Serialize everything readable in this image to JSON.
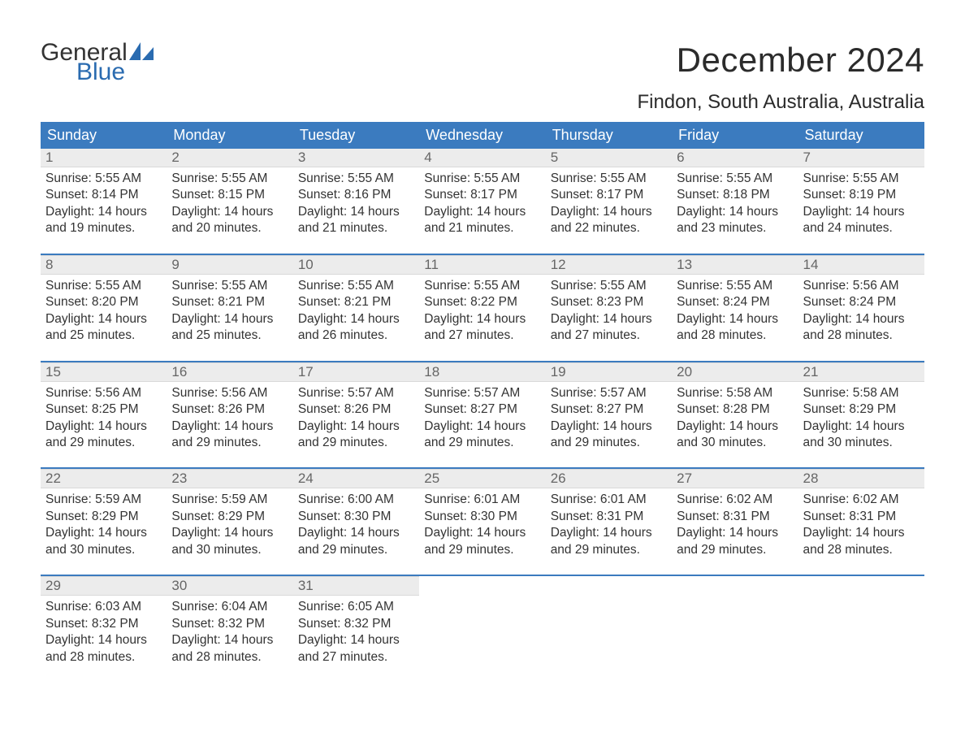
{
  "brand": {
    "word1": "General",
    "word2": "Blue",
    "word1_color": "#333333",
    "word2_color": "#2a6bb0"
  },
  "title": "December 2024",
  "location": "Findon, South Australia, Australia",
  "header_bg": "#3b7bbf",
  "header_fg": "#ffffff",
  "daynum_bg": "#ececec",
  "daynum_fg": "#666666",
  "text_color": "#333333",
  "rule_color": "#3b7bbf",
  "days_of_week": [
    "Sunday",
    "Monday",
    "Tuesday",
    "Wednesday",
    "Thursday",
    "Friday",
    "Saturday"
  ],
  "weeks": [
    [
      {
        "n": "1",
        "sunrise": "Sunrise: 5:55 AM",
        "sunset": "Sunset: 8:14 PM",
        "d1": "Daylight: 14 hours",
        "d2": "and 19 minutes."
      },
      {
        "n": "2",
        "sunrise": "Sunrise: 5:55 AM",
        "sunset": "Sunset: 8:15 PM",
        "d1": "Daylight: 14 hours",
        "d2": "and 20 minutes."
      },
      {
        "n": "3",
        "sunrise": "Sunrise: 5:55 AM",
        "sunset": "Sunset: 8:16 PM",
        "d1": "Daylight: 14 hours",
        "d2": "and 21 minutes."
      },
      {
        "n": "4",
        "sunrise": "Sunrise: 5:55 AM",
        "sunset": "Sunset: 8:17 PM",
        "d1": "Daylight: 14 hours",
        "d2": "and 21 minutes."
      },
      {
        "n": "5",
        "sunrise": "Sunrise: 5:55 AM",
        "sunset": "Sunset: 8:17 PM",
        "d1": "Daylight: 14 hours",
        "d2": "and 22 minutes."
      },
      {
        "n": "6",
        "sunrise": "Sunrise: 5:55 AM",
        "sunset": "Sunset: 8:18 PM",
        "d1": "Daylight: 14 hours",
        "d2": "and 23 minutes."
      },
      {
        "n": "7",
        "sunrise": "Sunrise: 5:55 AM",
        "sunset": "Sunset: 8:19 PM",
        "d1": "Daylight: 14 hours",
        "d2": "and 24 minutes."
      }
    ],
    [
      {
        "n": "8",
        "sunrise": "Sunrise: 5:55 AM",
        "sunset": "Sunset: 8:20 PM",
        "d1": "Daylight: 14 hours",
        "d2": "and 25 minutes."
      },
      {
        "n": "9",
        "sunrise": "Sunrise: 5:55 AM",
        "sunset": "Sunset: 8:21 PM",
        "d1": "Daylight: 14 hours",
        "d2": "and 25 minutes."
      },
      {
        "n": "10",
        "sunrise": "Sunrise: 5:55 AM",
        "sunset": "Sunset: 8:21 PM",
        "d1": "Daylight: 14 hours",
        "d2": "and 26 minutes."
      },
      {
        "n": "11",
        "sunrise": "Sunrise: 5:55 AM",
        "sunset": "Sunset: 8:22 PM",
        "d1": "Daylight: 14 hours",
        "d2": "and 27 minutes."
      },
      {
        "n": "12",
        "sunrise": "Sunrise: 5:55 AM",
        "sunset": "Sunset: 8:23 PM",
        "d1": "Daylight: 14 hours",
        "d2": "and 27 minutes."
      },
      {
        "n": "13",
        "sunrise": "Sunrise: 5:55 AM",
        "sunset": "Sunset: 8:24 PM",
        "d1": "Daylight: 14 hours",
        "d2": "and 28 minutes."
      },
      {
        "n": "14",
        "sunrise": "Sunrise: 5:56 AM",
        "sunset": "Sunset: 8:24 PM",
        "d1": "Daylight: 14 hours",
        "d2": "and 28 minutes."
      }
    ],
    [
      {
        "n": "15",
        "sunrise": "Sunrise: 5:56 AM",
        "sunset": "Sunset: 8:25 PM",
        "d1": "Daylight: 14 hours",
        "d2": "and 29 minutes."
      },
      {
        "n": "16",
        "sunrise": "Sunrise: 5:56 AM",
        "sunset": "Sunset: 8:26 PM",
        "d1": "Daylight: 14 hours",
        "d2": "and 29 minutes."
      },
      {
        "n": "17",
        "sunrise": "Sunrise: 5:57 AM",
        "sunset": "Sunset: 8:26 PM",
        "d1": "Daylight: 14 hours",
        "d2": "and 29 minutes."
      },
      {
        "n": "18",
        "sunrise": "Sunrise: 5:57 AM",
        "sunset": "Sunset: 8:27 PM",
        "d1": "Daylight: 14 hours",
        "d2": "and 29 minutes."
      },
      {
        "n": "19",
        "sunrise": "Sunrise: 5:57 AM",
        "sunset": "Sunset: 8:27 PM",
        "d1": "Daylight: 14 hours",
        "d2": "and 29 minutes."
      },
      {
        "n": "20",
        "sunrise": "Sunrise: 5:58 AM",
        "sunset": "Sunset: 8:28 PM",
        "d1": "Daylight: 14 hours",
        "d2": "and 30 minutes."
      },
      {
        "n": "21",
        "sunrise": "Sunrise: 5:58 AM",
        "sunset": "Sunset: 8:29 PM",
        "d1": "Daylight: 14 hours",
        "d2": "and 30 minutes."
      }
    ],
    [
      {
        "n": "22",
        "sunrise": "Sunrise: 5:59 AM",
        "sunset": "Sunset: 8:29 PM",
        "d1": "Daylight: 14 hours",
        "d2": "and 30 minutes."
      },
      {
        "n": "23",
        "sunrise": "Sunrise: 5:59 AM",
        "sunset": "Sunset: 8:29 PM",
        "d1": "Daylight: 14 hours",
        "d2": "and 30 minutes."
      },
      {
        "n": "24",
        "sunrise": "Sunrise: 6:00 AM",
        "sunset": "Sunset: 8:30 PM",
        "d1": "Daylight: 14 hours",
        "d2": "and 29 minutes."
      },
      {
        "n": "25",
        "sunrise": "Sunrise: 6:01 AM",
        "sunset": "Sunset: 8:30 PM",
        "d1": "Daylight: 14 hours",
        "d2": "and 29 minutes."
      },
      {
        "n": "26",
        "sunrise": "Sunrise: 6:01 AM",
        "sunset": "Sunset: 8:31 PM",
        "d1": "Daylight: 14 hours",
        "d2": "and 29 minutes."
      },
      {
        "n": "27",
        "sunrise": "Sunrise: 6:02 AM",
        "sunset": "Sunset: 8:31 PM",
        "d1": "Daylight: 14 hours",
        "d2": "and 29 minutes."
      },
      {
        "n": "28",
        "sunrise": "Sunrise: 6:02 AM",
        "sunset": "Sunset: 8:31 PM",
        "d1": "Daylight: 14 hours",
        "d2": "and 28 minutes."
      }
    ],
    [
      {
        "n": "29",
        "sunrise": "Sunrise: 6:03 AM",
        "sunset": "Sunset: 8:32 PM",
        "d1": "Daylight: 14 hours",
        "d2": "and 28 minutes."
      },
      {
        "n": "30",
        "sunrise": "Sunrise: 6:04 AM",
        "sunset": "Sunset: 8:32 PM",
        "d1": "Daylight: 14 hours",
        "d2": "and 28 minutes."
      },
      {
        "n": "31",
        "sunrise": "Sunrise: 6:05 AM",
        "sunset": "Sunset: 8:32 PM",
        "d1": "Daylight: 14 hours",
        "d2": "and 27 minutes."
      },
      null,
      null,
      null,
      null
    ]
  ]
}
